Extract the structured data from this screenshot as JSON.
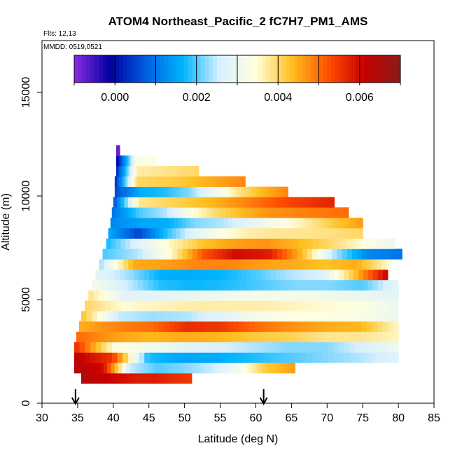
{
  "chart_data": {
    "type": "heatmap",
    "title": "ATOM4 Northeast_Pacific_2 fC7H7_PM1_AMS",
    "flights_label": "Flts: 12,13",
    "date_label": "MMDD: 0519,0521",
    "xlabel": "Latitude (deg N)",
    "ylabel": "Altitude (m)",
    "xlim": [
      30,
      85
    ],
    "ylim": [
      0,
      17500
    ],
    "xticks": [
      "30",
      "35",
      "40",
      "45",
      "50",
      "55",
      "60",
      "65",
      "70",
      "75",
      "80",
      "85"
    ],
    "yticks": [
      "0",
      "5000",
      "10000",
      "15000"
    ],
    "colorbar": {
      "min": -0.001,
      "max": 0.007,
      "ticks": [
        "0.000",
        "0.002",
        "0.004",
        "0.006"
      ],
      "tick_values": [
        0.0,
        0.002,
        0.004,
        0.006
      ],
      "stops": [
        "#8a2be2",
        "#0000a0",
        "#0060e0",
        "#00b4ff",
        "#d8f0ff",
        "#ffffe0",
        "#ffc020",
        "#ff5000",
        "#c80000",
        "#8b1a1a"
      ]
    },
    "arrows_at_latitude": [
      34.7,
      61.1
    ],
    "layers": [
      {
        "alt": 1200,
        "lat_start": 35.5,
        "lat_end": 51.0,
        "values": [
          0.0065,
          0.0062,
          0.006,
          0.0058,
          0.0058,
          0.0056,
          0.0055
        ]
      },
      {
        "alt": 1700,
        "lat_start": 34.5,
        "lat_end": 65.5,
        "values": [
          0.0064,
          0.006,
          0.0025,
          0.002,
          0.0022,
          0.0025,
          0.0032,
          0.0042,
          0.0046
        ]
      },
      {
        "alt": 2200,
        "lat_start": 34.5,
        "lat_end": 80.0,
        "values": [
          0.0062,
          0.0055,
          0.0018,
          0.0015,
          0.0016,
          0.0018,
          0.002,
          0.0022,
          0.0024,
          0.0027
        ]
      },
      {
        "alt": 2700,
        "lat_start": 34.5,
        "lat_end": 80.0,
        "values": [
          0.0055,
          0.0035,
          0.0032,
          0.0028,
          0.0026,
          0.0024,
          0.0022,
          0.0022,
          0.0026,
          0.003
        ]
      },
      {
        "alt": 3200,
        "lat_start": 34.8,
        "lat_end": 80.0,
        "values": [
          0.005,
          0.0046,
          0.0044,
          0.0045,
          0.0044,
          0.0042,
          0.0041,
          0.0038,
          0.0038,
          0.0036
        ]
      },
      {
        "alt": 3700,
        "lat_start": 35.2,
        "lat_end": 80.0,
        "values": [
          0.0045,
          0.0048,
          0.005,
          0.0056,
          0.0055,
          0.005,
          0.0047,
          0.0045,
          0.0044,
          0.0036
        ]
      },
      {
        "alt": 4200,
        "lat_start": 35.5,
        "lat_end": 80.0,
        "values": [
          0.0042,
          0.0025,
          0.0023,
          0.0024,
          0.0028,
          0.0032,
          0.0034,
          0.0034,
          0.0033,
          0.003
        ]
      },
      {
        "alt": 4700,
        "lat_start": 36.0,
        "lat_end": 80.0,
        "values": [
          0.004,
          0.0035,
          0.0036,
          0.0037,
          0.0037,
          0.0037,
          0.0036,
          0.0035,
          0.0034,
          0.003
        ]
      },
      {
        "alt": 5200,
        "lat_start": 36.5,
        "lat_end": 80.0,
        "values": [
          0.0038,
          0.0028,
          0.0028,
          0.003,
          0.0031,
          0.0032,
          0.0032,
          0.0031,
          0.003,
          0.0028
        ]
      },
      {
        "alt": 5700,
        "lat_start": 37.0,
        "lat_end": 80.0,
        "values": [
          0.0032,
          0.0025,
          0.0018,
          0.0017,
          0.0018,
          0.002,
          0.0022,
          0.0022,
          0.002,
          0.0028
        ]
      },
      {
        "alt": 6200,
        "lat_start": 37.5,
        "lat_end": 78.5,
        "values": [
          0.0028,
          0.0023,
          0.0016,
          0.0016,
          0.0017,
          0.002,
          0.0024,
          0.0026,
          0.0042,
          0.006
        ]
      },
      {
        "alt": 6700,
        "lat_start": 38.0,
        "lat_end": 79.0,
        "values": [
          0.0024,
          0.0045,
          0.0046,
          0.0048,
          0.0048,
          0.0046,
          0.0045,
          0.0043,
          0.0045,
          0.0035
        ]
      },
      {
        "alt": 7200,
        "lat_start": 38.5,
        "lat_end": 80.5,
        "values": [
          0.002,
          0.0024,
          0.0035,
          0.0052,
          0.006,
          0.0058,
          0.0044,
          0.0024,
          0.0012,
          0.001
        ]
      },
      {
        "alt": 7700,
        "lat_start": 39.0,
        "lat_end": 79.5,
        "values": [
          0.0018,
          0.0028,
          0.0036,
          0.0043,
          0.0046,
          0.0047,
          0.0044,
          0.004,
          0.0035,
          0.003
        ]
      },
      {
        "alt": 8200,
        "lat_start": 39.3,
        "lat_end": 75.0,
        "values": [
          0.0015,
          0.0005,
          0.0018,
          0.0028,
          0.0034,
          0.0037,
          0.0038,
          0.0038,
          0.0039,
          0.004
        ]
      },
      {
        "alt": 8700,
        "lat_start": 39.6,
        "lat_end": 75.0,
        "values": [
          0.0012,
          0.0015,
          0.0016,
          0.0022,
          0.0024,
          0.0028,
          0.0033,
          0.0037,
          0.0042,
          0.0046
        ]
      },
      {
        "alt": 9200,
        "lat_start": 39.8,
        "lat_end": 73.0,
        "values": [
          0.001,
          0.002,
          0.0024,
          0.0034,
          0.004,
          0.0044,
          0.0047,
          0.0048,
          0.0049,
          0.005
        ]
      },
      {
        "alt": 9700,
        "lat_start": 40.0,
        "lat_end": 71.0,
        "values": [
          0.0008,
          0.0038,
          0.004,
          0.0042,
          0.0044,
          0.0047,
          0.005,
          0.0053,
          0.0055,
          0.0057
        ]
      },
      {
        "alt": 10200,
        "lat_start": 40.2,
        "lat_end": 64.5,
        "values": [
          0.0006,
          0.0016,
          0.0018,
          0.0022,
          0.003,
          0.0038,
          0.0044,
          0.0048
        ]
      },
      {
        "alt": 10700,
        "lat_start": 40.2,
        "lat_end": 58.5,
        "values": [
          0.0004,
          0.004,
          0.0041,
          0.0042,
          0.0044,
          0.0046,
          0.0048
        ]
      },
      {
        "alt": 11200,
        "lat_start": 40.4,
        "lat_end": 52.0,
        "values": [
          0.0003,
          0.0037,
          0.0038,
          0.0039,
          0.004
        ]
      },
      {
        "alt": 11700,
        "lat_start": 40.4,
        "lat_end": 46.0,
        "values": [
          -0.0002,
          0.0033,
          0.0034
        ]
      },
      {
        "alt": 12200,
        "lat_start": 40.4,
        "lat_end": 40.9,
        "values": [
          -0.0008
        ]
      }
    ]
  }
}
